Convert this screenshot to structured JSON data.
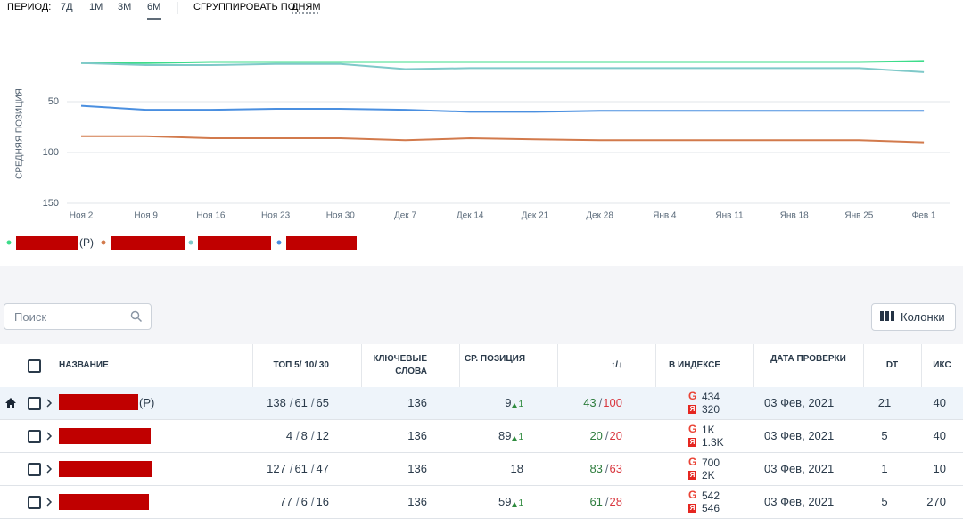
{
  "toolbar": {
    "period_label": "ПЕРИОД:",
    "periods": [
      "7Д",
      "1М",
      "3М",
      "6М"
    ],
    "active_period": 3,
    "group_label": "СГРУППИРОВАТЬ ПО:",
    "group_value": "ДНЯМ"
  },
  "chart_data": {
    "type": "line",
    "y_label": "СРЕДНЯЯ ПОЗИЦИЯ",
    "categories": [
      "Ноя 2",
      "Ноя 9",
      "Ноя 16",
      "Ноя 23",
      "Ноя 30",
      "Дек 7",
      "Дек 14",
      "Дек 21",
      "Дек 28",
      "Янв 4",
      "Янв 11",
      "Янв 18",
      "Янв 25",
      "Фев 1"
    ],
    "series": [
      {
        "name": "(Р)",
        "color": "#3ddc8a",
        "values": [
          12,
          12,
          11,
          11,
          11,
          11,
          11,
          11,
          11,
          11,
          11,
          11,
          11,
          10
        ]
      },
      {
        "color": "#d27a4c",
        "values": [
          84,
          84,
          86,
          86,
          86,
          88,
          86,
          87,
          88,
          88,
          88,
          88,
          88,
          90
        ]
      },
      {
        "color": "#7fc9c9",
        "values": [
          12,
          14,
          14,
          13,
          13,
          18,
          17,
          17,
          17,
          17,
          17,
          17,
          17,
          21
        ]
      },
      {
        "color": "#4a8fe0",
        "values": [
          54,
          58,
          58,
          57,
          57,
          58,
          60,
          60,
          59,
          59,
          59,
          59,
          59,
          59
        ]
      }
    ],
    "ylim": [
      0,
      150
    ],
    "y_inverted": true,
    "yticks": [
      50,
      100,
      150
    ],
    "grid": true
  },
  "search_placeholder": "Поиск",
  "columns_button": "Колонки",
  "table": {
    "headers": [
      "НАЗВАНИЕ",
      "ТОП 5/ 10/ 30",
      "КЛЮЧЕВЫЕ СЛОВА",
      "СР. ПОЗИЦИЯ",
      "↑/↓",
      "В ИНДЕКСЕ",
      "ДАТА ПРОВЕРКИ",
      "DT",
      "ИКС"
    ],
    "separator": "/",
    "index_icons": {
      "google": "G",
      "yandex": "Я"
    },
    "rows": [
      {
        "home": true,
        "name_suffix": "(Р)",
        "top": [
          138,
          61,
          65
        ],
        "keywords": 136,
        "avg_position": 9,
        "change": 1,
        "up": 43,
        "down": 100,
        "google": "434",
        "yandex": "320",
        "date": "03 Фев, 2021",
        "dt": 21,
        "iks": 40
      },
      {
        "top": [
          4,
          8,
          12
        ],
        "keywords": 136,
        "avg_position": 89,
        "change": 1,
        "up": 20,
        "down": 20,
        "google": "1K",
        "yandex": "1.3K",
        "date": "03 Фев, 2021",
        "dt": 5,
        "iks": 40
      },
      {
        "top": [
          127,
          61,
          47
        ],
        "keywords": 136,
        "avg_position": 18,
        "up": 83,
        "down": 63,
        "google": "700",
        "yandex": "2K",
        "date": "03 Фев, 2021",
        "dt": 1,
        "iks": 10
      },
      {
        "top": [
          77,
          6,
          16
        ],
        "keywords": 136,
        "avg_position": 59,
        "change": 1,
        "up": 61,
        "down": 28,
        "google": "542",
        "yandex": "546",
        "date": "03 Фев, 2021",
        "dt": 5,
        "iks": 270
      }
    ]
  }
}
